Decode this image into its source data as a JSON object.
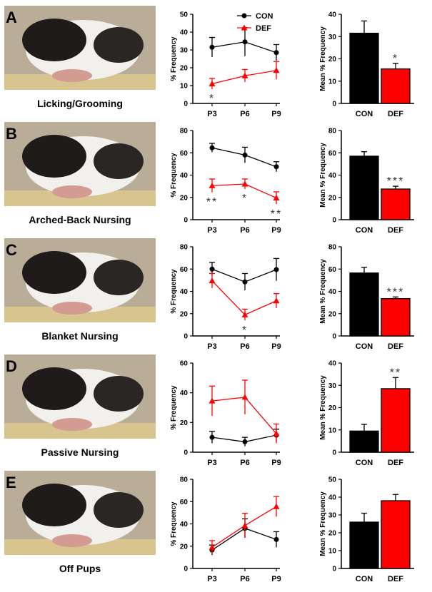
{
  "legend": {
    "con_label": "CON",
    "def_label": "DEF"
  },
  "colors": {
    "con": "#000000",
    "def": "#ff0000",
    "axis": "#000000",
    "stars": "#333333"
  },
  "panels": [
    {
      "letter": "A",
      "caption": "Licking/Grooming"
    },
    {
      "letter": "B",
      "caption": "Arched-Back Nursing"
    },
    {
      "letter": "C",
      "caption": "Blanket Nursing"
    },
    {
      "letter": "D",
      "caption": "Passive Nursing"
    },
    {
      "letter": "E",
      "caption": "Off Pups"
    }
  ],
  "chart_data": [
    {
      "type": "line",
      "panel": "A",
      "ylabel": "% Frequency",
      "ylim": [
        0,
        50
      ],
      "yticks": [
        0,
        10,
        20,
        30,
        40,
        50
      ],
      "categories": [
        "P3",
        "P6",
        "P9"
      ],
      "series": [
        {
          "name": "CON",
          "values": [
            31.5,
            34.5,
            28.5
          ],
          "errors": [
            5.5,
            8,
            4.5
          ]
        },
        {
          "name": "DEF",
          "values": [
            11,
            15.5,
            18.5
          ],
          "errors": [
            3,
            3.5,
            5
          ]
        }
      ],
      "annotations": [
        {
          "category": "P3",
          "text": "*",
          "value": 4
        }
      ]
    },
    {
      "type": "bar",
      "panel": "A",
      "ylabel": "Mean % Frequency",
      "ylim": [
        0,
        40
      ],
      "yticks": [
        0,
        10,
        20,
        30,
        40
      ],
      "categories": [
        "CON",
        "DEF"
      ],
      "values": [
        31.5,
        15.5
      ],
      "errors": [
        5.5,
        2.5
      ],
      "annotations": [
        {
          "category": "DEF",
          "text": "*"
        }
      ]
    },
    {
      "type": "line",
      "panel": "B",
      "ylabel": "% Frequency",
      "ylim": [
        0,
        80
      ],
      "yticks": [
        0,
        20,
        40,
        60,
        80
      ],
      "categories": [
        "P3",
        "P6",
        "P9"
      ],
      "series": [
        {
          "name": "CON",
          "values": [
            64.5,
            58,
            47.5
          ],
          "errors": [
            4,
            7,
            4.5
          ]
        },
        {
          "name": "DEF",
          "values": [
            30.5,
            32,
            19.5
          ],
          "errors": [
            6,
            4.5,
            5.5
          ]
        }
      ],
      "annotations": [
        {
          "category": "P3",
          "text": "**",
          "value": 18
        },
        {
          "category": "P6",
          "text": "*",
          "value": 21
        },
        {
          "category": "P9",
          "text": "**",
          "value": 7
        }
      ]
    },
    {
      "type": "bar",
      "panel": "B",
      "ylabel": "Mean % Frequency",
      "ylim": [
        0,
        80
      ],
      "yticks": [
        0,
        20,
        40,
        60,
        80
      ],
      "categories": [
        "CON",
        "DEF"
      ],
      "values": [
        57,
        27.5
      ],
      "errors": [
        4,
        2.5
      ],
      "annotations": [
        {
          "category": "DEF",
          "text": "***"
        }
      ]
    },
    {
      "type": "line",
      "panel": "C",
      "ylabel": "% Frequency",
      "ylim": [
        0,
        80
      ],
      "yticks": [
        0,
        20,
        40,
        60,
        80
      ],
      "categories": [
        "P3",
        "P6",
        "P9"
      ],
      "series": [
        {
          "name": "CON",
          "values": [
            60,
            48.5,
            59.5
          ],
          "errors": [
            6,
            7.5,
            10
          ]
        },
        {
          "name": "DEF",
          "values": [
            49.5,
            19,
            31.5
          ],
          "errors": [
            6.5,
            5,
            6.5
          ]
        }
      ],
      "annotations": [
        {
          "category": "P6",
          "text": "*",
          "value": 7
        }
      ]
    },
    {
      "type": "bar",
      "panel": "C",
      "ylabel": "Mean % Frequency",
      "ylim": [
        0,
        80
      ],
      "yticks": [
        0,
        20,
        40,
        60,
        80
      ],
      "categories": [
        "CON",
        "DEF"
      ],
      "values": [
        56.5,
        33.5
      ],
      "errors": [
        5,
        1.5
      ],
      "annotations": [
        {
          "category": "DEF",
          "text": "***"
        }
      ]
    },
    {
      "type": "line",
      "panel": "D",
      "ylabel": "% Frequency",
      "ylim": [
        0,
        60
      ],
      "yticks": [
        0,
        20,
        40,
        60
      ],
      "categories": [
        "P3",
        "P6",
        "P9"
      ],
      "series": [
        {
          "name": "CON",
          "values": [
            10,
            7,
            11.5
          ],
          "errors": [
            4,
            3,
            4
          ]
        },
        {
          "name": "DEF",
          "values": [
            34.5,
            37,
            12.5
          ],
          "errors": [
            10,
            11.5,
            6.5
          ]
        }
      ],
      "annotations": []
    },
    {
      "type": "bar",
      "panel": "D",
      "ylabel": "Mean % Frequency",
      "ylim": [
        0,
        40
      ],
      "yticks": [
        0,
        10,
        20,
        30,
        40
      ],
      "categories": [
        "CON",
        "DEF"
      ],
      "values": [
        9.5,
        28.5
      ],
      "errors": [
        3,
        5
      ],
      "annotations": [
        {
          "category": "DEF",
          "text": "**"
        }
      ]
    },
    {
      "type": "line",
      "panel": "E",
      "ylabel": "% Frequency",
      "ylim": [
        0,
        80
      ],
      "yticks": [
        0,
        20,
        40,
        60,
        80
      ],
      "categories": [
        "P3",
        "P6",
        "P9"
      ],
      "series": [
        {
          "name": "CON",
          "values": [
            16.5,
            36,
            26
          ],
          "errors": [
            4.5,
            8.5,
            7
          ]
        },
        {
          "name": "DEF",
          "values": [
            19,
            38.5,
            55.5
          ],
          "errors": [
            6,
            11,
            9
          ]
        }
      ],
      "annotations": []
    },
    {
      "type": "bar",
      "panel": "E",
      "ylabel": "Mean % Frequency",
      "ylim": [
        0,
        50
      ],
      "yticks": [
        0,
        10,
        20,
        30,
        40,
        50
      ],
      "categories": [
        "CON",
        "DEF"
      ],
      "values": [
        26,
        38
      ],
      "errors": [
        5,
        3.5
      ],
      "annotations": []
    }
  ]
}
